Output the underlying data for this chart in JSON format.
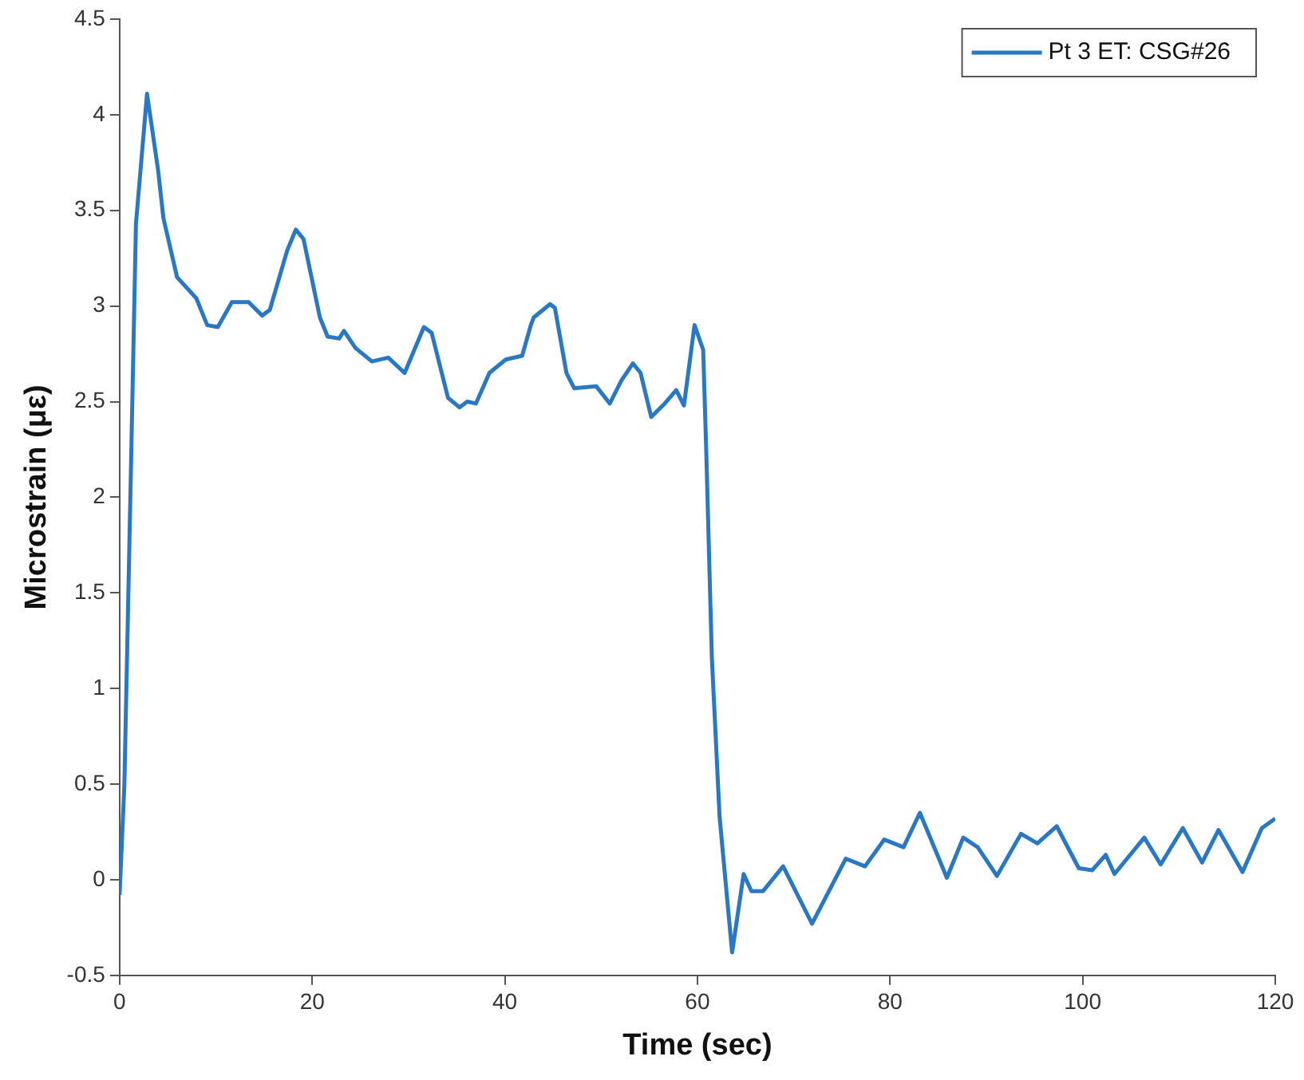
{
  "chart_data": {
    "type": "line",
    "xlabel": "Time (sec)",
    "ylabel": "Microstrain (με)",
    "xlim": [
      0,
      120
    ],
    "xticks": [
      0,
      20,
      40,
      60,
      80,
      100,
      120
    ],
    "ylim": [
      -0.5,
      4.5
    ],
    "yticks": [
      -0.5,
      0,
      0.5,
      1,
      1.5,
      2,
      2.5,
      3,
      3.5,
      4,
      4.5
    ],
    "grid": false,
    "legend": "top right",
    "marker": "none",
    "line_style": "solid",
    "series": [
      {
        "name": "Pt 3 ET: CSG#26",
        "color": "#2a78c4",
        "x": [
          0,
          0.5,
          1.14,
          1.7,
          2.85,
          4.0,
          4.55,
          5.97,
          7.97,
          9.1,
          10.2,
          11.66,
          13.4,
          14.8,
          15.6,
          17.4,
          18.3,
          19.1,
          20.8,
          21.6,
          22.8,
          23.3,
          24.5,
          26.2,
          27.9,
          29.6,
          31.6,
          32.4,
          34.1,
          35.3,
          36.1,
          37,
          38.4,
          40.1,
          41.8,
          42.7,
          43,
          44.7,
          45.2,
          46.4,
          47.2,
          49.5,
          50.9,
          52.1,
          53.3,
          54.1,
          55.2,
          56.6,
          57.8,
          58.6,
          59.7,
          60.6,
          60.9,
          61.5,
          62.3,
          63.6,
          64.8,
          65.6,
          66.8,
          68.9,
          71.9,
          75.4,
          77.4,
          79.4,
          81.4,
          83.1,
          85.9,
          87.6,
          89.1,
          91.1,
          93.6,
          95.3,
          97.3,
          99.6,
          101,
          102.4,
          103.3,
          106.4,
          108.1,
          110.4,
          112.4,
          114.1,
          116.6,
          118.6,
          120
        ],
        "values": [
          -0.08,
          0.5,
          2.05,
          3.43,
          4.11,
          3.71,
          3.46,
          3.15,
          3.04,
          2.9,
          2.89,
          3.02,
          3.02,
          2.95,
          2.98,
          3.29,
          3.4,
          3.35,
          2.94,
          2.84,
          2.83,
          2.87,
          2.78,
          2.71,
          2.73,
          2.65,
          2.89,
          2.86,
          2.52,
          2.47,
          2.5,
          2.49,
          2.65,
          2.72,
          2.74,
          2.9,
          2.94,
          3.01,
          2.99,
          2.65,
          2.57,
          2.58,
          2.49,
          2.61,
          2.7,
          2.65,
          2.42,
          2.49,
          2.56,
          2.48,
          2.9,
          2.77,
          2.27,
          1.16,
          0.33,
          -0.38,
          0.03,
          -0.06,
          -0.06,
          0.07,
          -0.23,
          0.11,
          0.07,
          0.21,
          0.17,
          0.35,
          0.01,
          0.22,
          0.17,
          0.02,
          0.24,
          0.19,
          0.28,
          0.06,
          0.05,
          0.13,
          0.03,
          0.22,
          0.08,
          0.27,
          0.09,
          0.26,
          0.04,
          0.27,
          0.32
        ]
      }
    ]
  }
}
